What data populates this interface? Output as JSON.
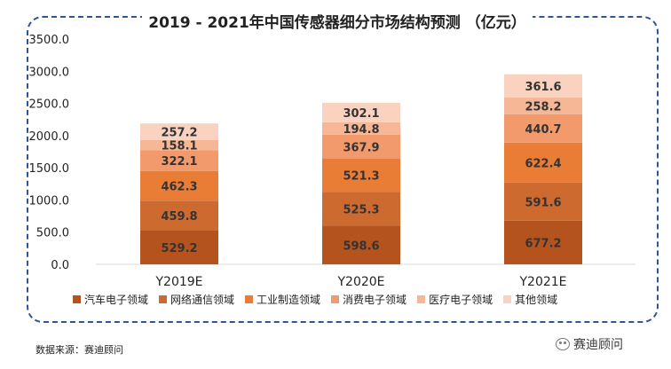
{
  "chart_data": {
    "type": "bar",
    "stacked": true,
    "title": "2019 - 2021年中国传感器细分市场结构预测 （亿元）",
    "categories": [
      "Y2019E",
      "Y2020E",
      "Y2021E"
    ],
    "series": [
      {
        "name": "汽车电子领域",
        "color": "#b5531f",
        "values": [
          529.2,
          598.6,
          677.2
        ]
      },
      {
        "name": "网络通信领域",
        "color": "#cd6a30",
        "values": [
          459.8,
          525.3,
          591.6
        ]
      },
      {
        "name": "工业制造领域",
        "color": "#ea7d35",
        "values": [
          462.3,
          521.3,
          622.4
        ]
      },
      {
        "name": "消费电子领域",
        "color": "#f29a6c",
        "values": [
          322.1,
          367.9,
          440.7
        ]
      },
      {
        "name": "医疗电子领域",
        "color": "#f6b797",
        "values": [
          158.1,
          194.8,
          258.2
        ]
      },
      {
        "name": "其他领域",
        "color": "#f9d3c0",
        "values": [
          257.2,
          302.1,
          361.6
        ]
      }
    ],
    "ylim": [
      0,
      3500
    ],
    "yticks": [
      "0.0",
      "500.0",
      "1000.0",
      "1500.0",
      "2000.0",
      "2500.0",
      "3000.0",
      "3500.0"
    ],
    "grid": false,
    "legend_position": "bottom"
  },
  "source_note": "数据来源：赛迪顾问",
  "brand": "赛迪顾问"
}
